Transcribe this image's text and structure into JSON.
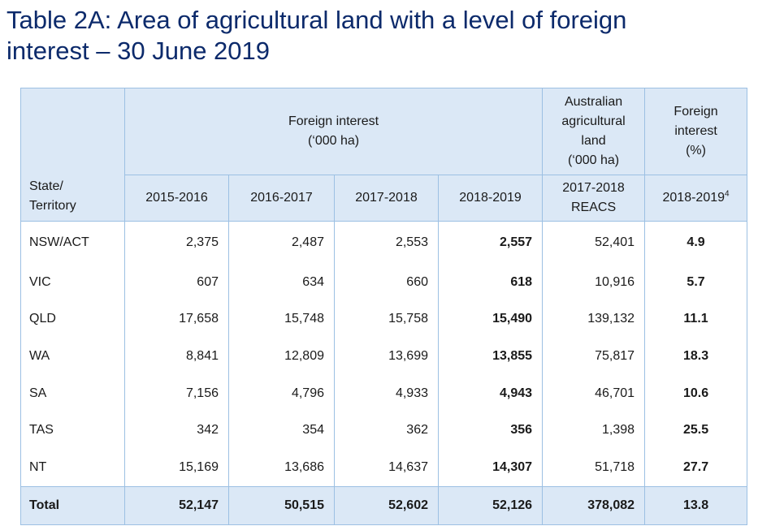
{
  "title": {
    "line1": "Table 2A: Area of agricultural land with a level of foreign",
    "line2": "interest – 30 June 2019"
  },
  "header": {
    "state_line1": "State/",
    "state_line2": "Territory",
    "foreign_interest_line1": "Foreign interest",
    "foreign_interest_line2": "(‘000 ha)",
    "aus_land": [
      "Australian",
      "agricultural",
      "land",
      "(‘000 ha)"
    ],
    "pct": [
      "Foreign",
      "interest",
      "(%)"
    ],
    "years": [
      "2015-2016",
      "2016-2017",
      "2017-2018",
      "2018-2019"
    ],
    "reacs_line1": "2017-2018",
    "reacs_line2": "REACS",
    "pct_year": "2018-2019",
    "pct_year_note": "4"
  },
  "rows": [
    {
      "state": "NSW/ACT",
      "y2015": "2,375",
      "y2016": "2,487",
      "y2017": "2,553",
      "y2018": "2,557",
      "aus": "52,401",
      "pct": "4.9"
    },
    {
      "state": "VIC",
      "y2015": "607",
      "y2016": "634",
      "y2017": "660",
      "y2018": "618",
      "aus": "10,916",
      "pct": "5.7"
    },
    {
      "state": "QLD",
      "y2015": "17,658",
      "y2016": "15,748",
      "y2017": "15,758",
      "y2018": "15,490",
      "aus": "139,132",
      "pct": "11.1"
    },
    {
      "state": "WA",
      "y2015": "8,841",
      "y2016": "12,809",
      "y2017": "13,699",
      "y2018": "13,855",
      "aus": "75,817",
      "pct": "18.3"
    },
    {
      "state": "SA",
      "y2015": "7,156",
      "y2016": "4,796",
      "y2017": "4,933",
      "y2018": "4,943",
      "aus": "46,701",
      "pct": "10.6"
    },
    {
      "state": "TAS",
      "y2015": "342",
      "y2016": "354",
      "y2017": "362",
      "y2018": "356",
      "aus": "1,398",
      "pct": "25.5"
    },
    {
      "state": "NT",
      "y2015": "15,169",
      "y2016": "13,686",
      "y2017": "14,637",
      "y2018": "14,307",
      "aus": "51,718",
      "pct": "27.7"
    }
  ],
  "total": {
    "state": "Total",
    "y2015": "52,147",
    "y2016": "50,515",
    "y2017": "52,602",
    "y2018": "52,126",
    "aus": "378,082",
    "pct": "13.8"
  }
}
